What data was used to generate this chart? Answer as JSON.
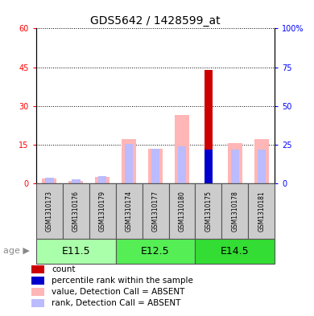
{
  "title": "GDS5642 / 1428599_at",
  "samples": [
    "GSM1310173",
    "GSM1310176",
    "GSM1310179",
    "GSM1310174",
    "GSM1310177",
    "GSM1310180",
    "GSM1310175",
    "GSM1310178",
    "GSM1310181"
  ],
  "count_values": [
    0,
    0,
    0,
    0,
    0,
    0,
    44,
    0,
    0
  ],
  "percentile_values": [
    0,
    0,
    0,
    0,
    0,
    0,
    22,
    0,
    0
  ],
  "value_absent": [
    2.0,
    1.0,
    2.5,
    17.0,
    13.5,
    26.5,
    0,
    15.5,
    17.0
  ],
  "rank_absent": [
    3.5,
    2.5,
    4.5,
    25.5,
    22.5,
    24.0,
    0,
    22.0,
    22.0
  ],
  "left_ylim": [
    0,
    60
  ],
  "right_ylim": [
    0,
    100
  ],
  "left_yticks": [
    0,
    15,
    30,
    45,
    60
  ],
  "right_yticks": [
    0,
    25,
    50,
    75,
    100
  ],
  "right_yticklabels": [
    "0",
    "25",
    "50",
    "75",
    "100%"
  ],
  "color_count": "#CC0000",
  "color_percentile": "#0000CC",
  "color_value_absent": "#FFB6B6",
  "color_rank_absent": "#BBBBFF",
  "age_groups": [
    {
      "label": "E11.5",
      "start": 0,
      "end": 2,
      "color": "#AAFFAA"
    },
    {
      "label": "E12.5",
      "start": 3,
      "end": 5,
      "color": "#55EE55"
    },
    {
      "label": "E14.5",
      "start": 6,
      "end": 8,
      "color": "#33DD33"
    }
  ],
  "title_fontsize": 10,
  "tick_fontsize": 7,
  "sample_fontsize": 5.5,
  "legend_fontsize": 7.5,
  "age_fontsize": 9,
  "bw_value": 0.55,
  "bw_rank": 0.32,
  "bw_count": 0.32
}
